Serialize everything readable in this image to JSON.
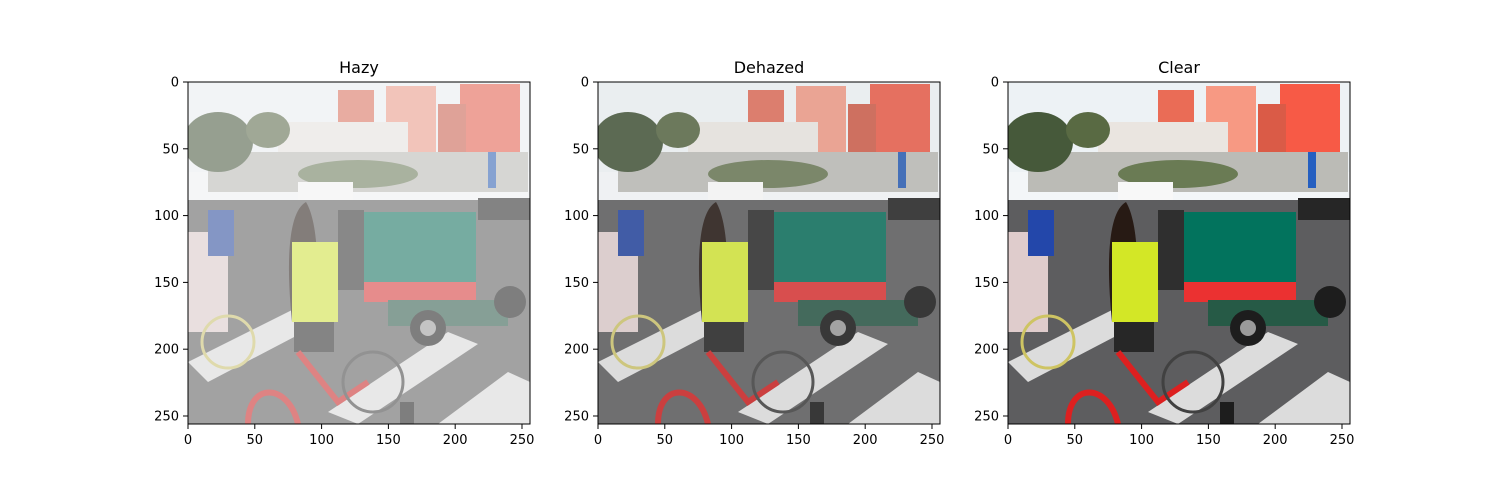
{
  "panels": [
    {
      "title": "Hazy",
      "variant": "hazy",
      "x_ticks": [
        "0",
        "50",
        "100",
        "150",
        "200",
        "250"
      ],
      "y_ticks": [
        "0",
        "50",
        "100",
        "150",
        "200",
        "250"
      ]
    },
    {
      "title": "Dehazed",
      "variant": "dehazed",
      "x_ticks": [
        "0",
        "50",
        "100",
        "150",
        "200",
        "250"
      ],
      "y_ticks": [
        "0",
        "50",
        "100",
        "150",
        "200",
        "250"
      ]
    },
    {
      "title": "Clear",
      "variant": "clear",
      "x_ticks": [
        "0",
        "50",
        "100",
        "150",
        "200",
        "250"
      ],
      "y_ticks": [
        "0",
        "50",
        "100",
        "150",
        "200",
        "250"
      ]
    }
  ],
  "image_extent": [
    0,
    256
  ],
  "colors": {
    "sky": "#eef0f2",
    "building_red": "#e07060",
    "building_white": "#e4e0dc",
    "road": "#5f5f60",
    "crosswalk": "#d8d8d8",
    "cart_green": "#13705e",
    "cart_red": "#d43a3a",
    "shirt_yellow": "#cfe040",
    "bike_red": "#c62a2a",
    "trees": "#4a5a40",
    "haze": "#ffffff"
  }
}
